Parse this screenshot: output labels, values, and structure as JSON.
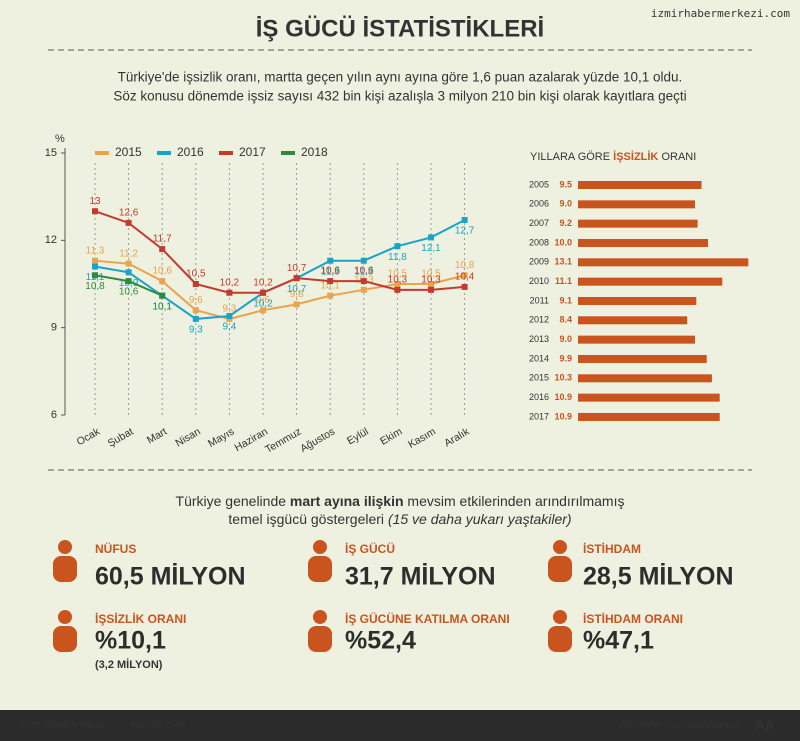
{
  "watermark": "izmirhabermerkezi.com",
  "header": {
    "title": "İŞ GÜCÜ İSTATİSTİKLERİ",
    "intro": [
      "Türkiye'de işsizlik oranı, martta geçen yılın aynı ayına göre 1,6 puan azalarak yüzde 10,1 oldu.",
      "Söz konusu dönemde işsiz sayısı 432 bin kişi azalışla 3 milyon 210 bin kişi olarak kayıtlara geçti"
    ]
  },
  "chart_data": [
    {
      "type": "line",
      "y_label": "%",
      "categories": [
        "Ocak",
        "Şubat",
        "Mart",
        "Nisan",
        "Mayıs",
        "Haziran",
        "Temmuz",
        "Ağustos",
        "Eylül",
        "Ekim",
        "Kasım",
        "Aralık"
      ],
      "ylim": [
        6,
        15
      ],
      "yticks": [
        6,
        9,
        12,
        15
      ],
      "series": [
        {
          "name": "2015",
          "color": "#e9a44c",
          "values": [
            11.3,
            11.2,
            10.6,
            9.6,
            9.3,
            9.6,
            9.8,
            10.1,
            10.3,
            10.5,
            10.5,
            10.8
          ],
          "value_labels": [
            "11,3",
            "11,2",
            "10,6",
            "9,6",
            "9,3",
            "9,6",
            "9,8",
            "10,1",
            "10,3",
            "10,5",
            "10,5",
            "10,8"
          ]
        },
        {
          "name": "2016",
          "color": "#1aa3c8",
          "values": [
            11.1,
            10.9,
            10.1,
            9.3,
            9.4,
            10.2,
            10.7,
            11.3,
            11.3,
            11.8,
            12.1,
            12.7
          ],
          "value_labels": [
            "11,1",
            "10,9",
            "10,1",
            "9,3",
            "9,4",
            "10,2",
            "10,7",
            "11,3",
            "11,3",
            "11,8",
            "12,1",
            "12,7"
          ]
        },
        {
          "name": "2017",
          "color": "#c43a2c",
          "values": [
            13,
            12.6,
            11.7,
            10.5,
            10.2,
            10.2,
            10.7,
            10.6,
            10.6,
            10.3,
            10.3,
            10.4
          ],
          "value_labels": [
            "13",
            "12,6",
            "11,7",
            "10,5",
            "10,2",
            "10,2",
            "10,7",
            "10,6",
            "10,6",
            "10,3",
            "10,3",
            "10,4"
          ]
        },
        {
          "name": "2018",
          "color": "#2e8a3c",
          "values": [
            10.8,
            10.6,
            10.1,
            null,
            null,
            null,
            null,
            null,
            null,
            null,
            null,
            null
          ],
          "value_labels": [
            "10,8",
            "10,6",
            "10,1",
            null,
            null,
            null,
            null,
            null,
            null,
            null,
            null,
            null
          ]
        }
      ]
    },
    {
      "type": "bar",
      "orientation": "horizontal",
      "title_parts": [
        "YILLARA GÖRE ",
        "İŞSİZLİK",
        " ORANI"
      ],
      "color": "#c9541e",
      "categories": [
        "2005",
        "2006",
        "2007",
        "2008",
        "2009",
        "2010",
        "2011",
        "2012",
        "2013",
        "2014",
        "2015",
        "2016",
        "2017"
      ],
      "values": [
        9.5,
        9.0,
        9.2,
        10.0,
        13.1,
        11.1,
        9.1,
        8.4,
        9.0,
        9.9,
        10.3,
        10.9,
        10.9
      ],
      "value_labels": [
        "9.5",
        "9.0",
        "9.2",
        "10.0",
        "13.1",
        "11.1",
        "9.1",
        "8.4",
        "9.0",
        "9.9",
        "10.3",
        "10.9",
        "10.9"
      ]
    }
  ],
  "section": {
    "line1": [
      "Türkiye genelinde ",
      "mart ayına ilişkin",
      " mevsim etkilerinden arındırılmamış"
    ],
    "line2": [
      "temel işgücü göstergeleri ",
      "(15 ve daha yukarı yaştakiler)"
    ]
  },
  "stats": [
    {
      "label": "NÜFUS",
      "value": "60,5 MİLYON"
    },
    {
      "label": "İŞ GÜCÜ",
      "value": "31,7 MİLYON"
    },
    {
      "label": "İSTİHDAM",
      "value": "28,5 MİLYON"
    },
    {
      "label": "İŞSİZLİK ORANI",
      "value": "%10,1",
      "note": "(3,2 MİLYON)"
    },
    {
      "label": "İŞ GÜCÜNE KATILMA ORANI",
      "value": "%52,4"
    },
    {
      "label": "İSTİHDAM ORANI",
      "value": "%47,1"
    }
  ],
  "footer": {
    "copyright": "2018, Anadolu Ajansı",
    "source": "Kaynak: TÜİK",
    "twitter": "www.twitter.com/anadoluajansi",
    "logo": "AA"
  }
}
